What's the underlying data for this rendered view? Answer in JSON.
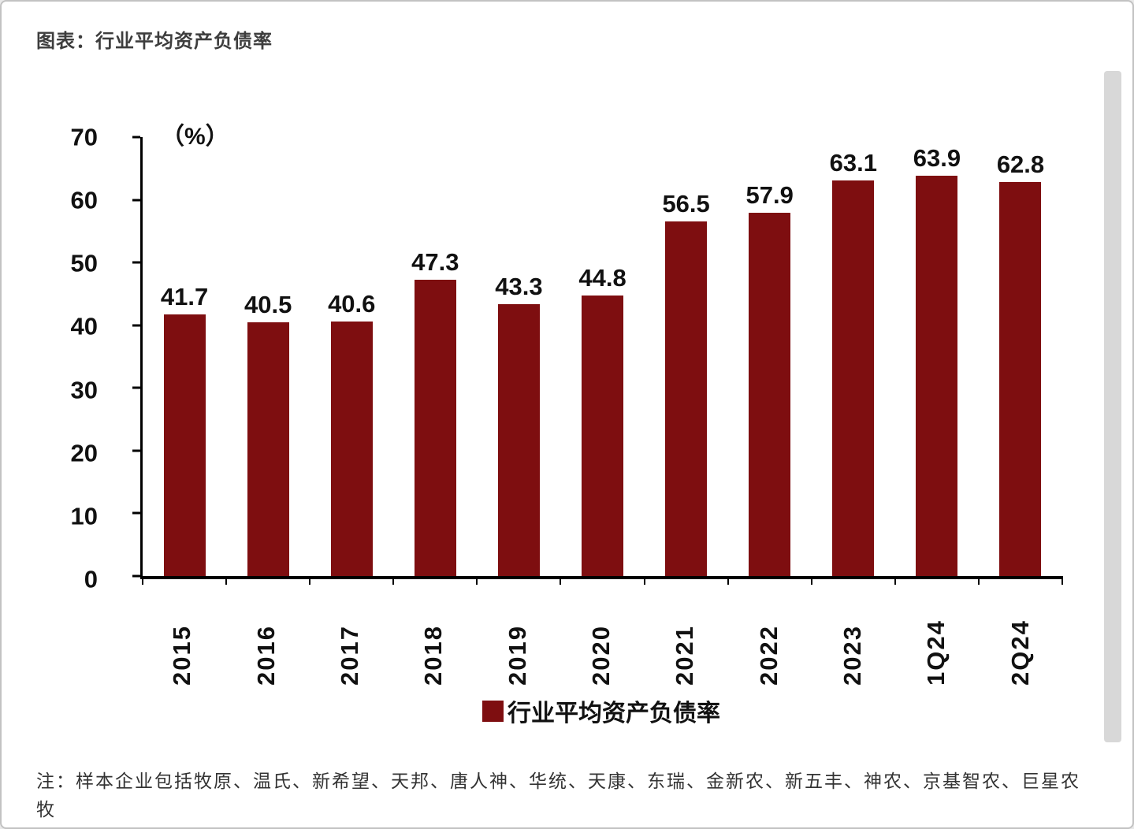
{
  "page": {
    "title": "图表：行业平均资产负债率",
    "note": "注：样本企业包括牧原、温氏、新希望、天邦、唐人神、华统、天康、东瑞、金新农、新五丰、神农、京基智农、巨星农牧"
  },
  "chart_data": {
    "type": "bar",
    "title": "行业平均资产负债率",
    "unit_label": "（%）",
    "categories": [
      "2015",
      "2016",
      "2017",
      "2018",
      "2019",
      "2020",
      "2021",
      "2022",
      "2023",
      "1Q24",
      "2Q24"
    ],
    "values": [
      41.7,
      40.5,
      40.6,
      47.3,
      43.3,
      44.8,
      56.5,
      57.9,
      63.1,
      63.9,
      62.8
    ],
    "ylim": [
      0,
      70
    ],
    "y_ticks": [
      0,
      10,
      20,
      30,
      40,
      50,
      60,
      70
    ],
    "bar_color": "#7e0e10",
    "grid": false,
    "legend": {
      "label": "行业平均资产负债率",
      "position": "bottom"
    }
  }
}
